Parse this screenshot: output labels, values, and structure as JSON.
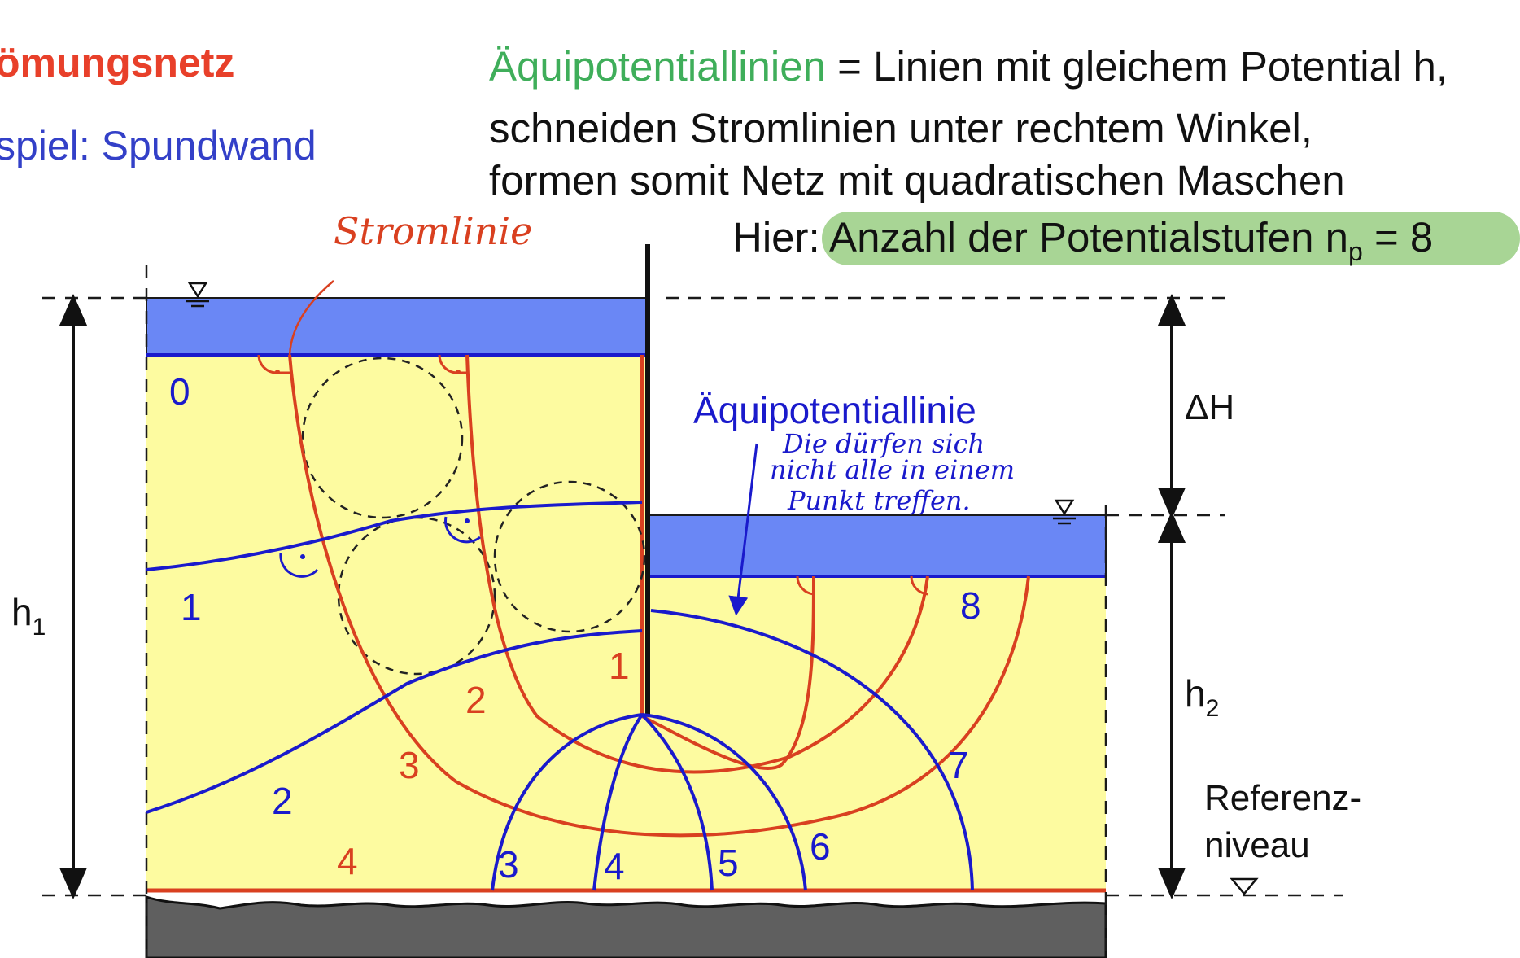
{
  "heading": {
    "title": "ömungsnetz",
    "subtitle": "spiel: Spundwand"
  },
  "definition": {
    "term": "Äquipotentiallinien",
    "line1_rest": " = Linien mit gleichem Potential h,",
    "line2": "schneiden Stromlinien unter rechtem Winkel,",
    "line3": "formen somit Netz mit quadratischen Maschen",
    "hier_prefix": "Hier: ",
    "hier_text": "Anzahl der Potentialstufen n",
    "hier_sub": "p",
    "hier_suffix": " = 8"
  },
  "handwriting": {
    "stromlinie": "Stromlinie",
    "note_line1": "Die dürfen sich",
    "note_line2": "nicht alle in einem",
    "note_line3": "Punkt treffen."
  },
  "diagram": {
    "equipotential_label": "Äquipotentiallinie",
    "delta_h": "ΔH",
    "h1": "h",
    "h1_sub": "1",
    "h2": "h",
    "h2_sub": "2",
    "reference_line1": "Referenz-",
    "reference_line2": "niveau",
    "equipotential_numbers": [
      "0",
      "1",
      "2",
      "3",
      "4",
      "5",
      "6",
      "7",
      "8"
    ],
    "streamline_numbers": [
      "1",
      "2",
      "3",
      "4"
    ],
    "colors": {
      "water": "#6a87f5",
      "soil": "#fdfba0",
      "bedrock": "#5f5f5f",
      "streamline": "#d94020",
      "equipotential": "#1a1acc",
      "highlight": "#9fd08a"
    }
  }
}
